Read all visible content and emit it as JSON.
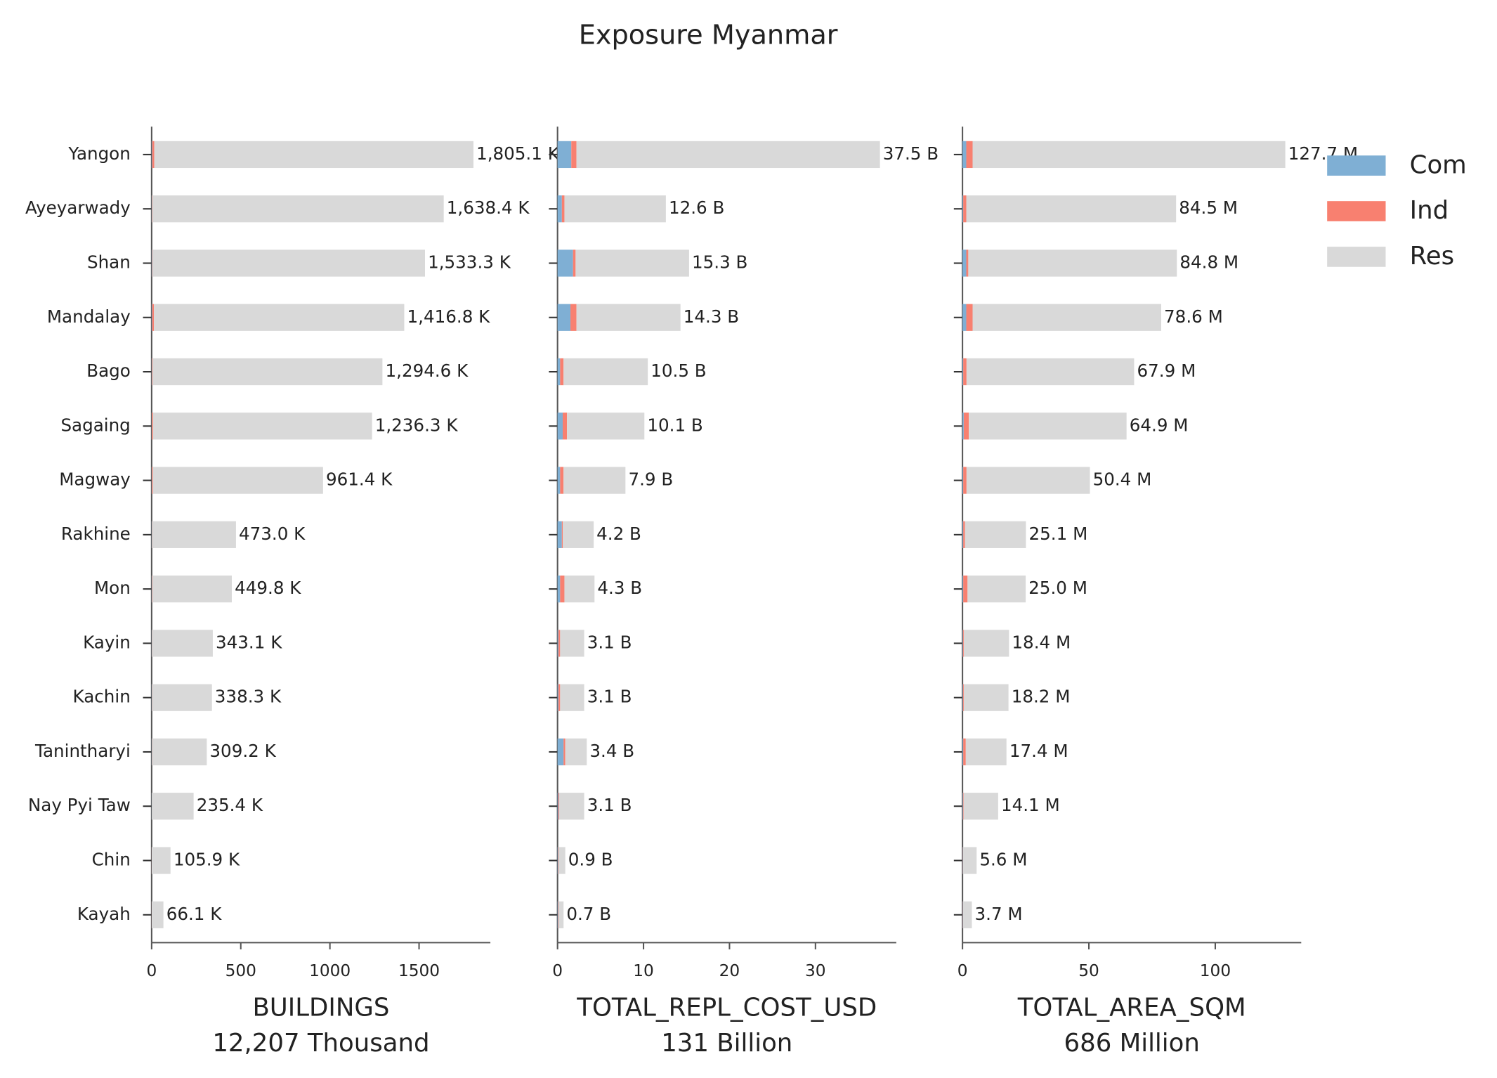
{
  "chart_data": {
    "type": "bar",
    "orientation": "horizontal",
    "title": "Exposure Myanmar",
    "categories": [
      "Yangon",
      "Ayeyarwady",
      "Shan",
      "Mandalay",
      "Bago",
      "Sagaing",
      "Magway",
      "Rakhine",
      "Mon",
      "Kayin",
      "Kachin",
      "Tanintharyi",
      "Nay Pyi Taw",
      "Chin",
      "Kayah"
    ],
    "legend": [
      {
        "name": "Com",
        "color": "#7fafd4"
      },
      {
        "name": "Ind",
        "color": "#f88070"
      },
      {
        "name": "Res",
        "color": "#d9d9d9"
      }
    ],
    "legend_position": "upper right",
    "panels": [
      {
        "xlabel": "BUILDINGS",
        "total_label": "12,207 Thousand",
        "xlim": [
          0,
          1900
        ],
        "xticks": [
          0,
          500,
          1000,
          1500
        ],
        "series": [
          {
            "values": [
              3,
              1,
              2,
              3,
              1,
              1,
              1,
              1,
              1,
              0.5,
              1,
              1,
              0.5,
              0.2,
              0.2
            ]
          },
          {
            "values": [
              12,
              2,
              2,
              10,
              3,
              6,
              5,
              1,
              2,
              1,
              1,
              1,
              0.5,
              0.3,
              0.3
            ]
          },
          {
            "values": [
              1790.1,
              1635.4,
              1529.3,
              1403.8,
              1290.6,
              1229.3,
              955.4,
              471.0,
              446.8,
              341.6,
              336.3,
              307.2,
              234.4,
              105.4,
              65.6
            ]
          }
        ],
        "value_labels": [
          "1,805.1 K",
          "1,638.4 K",
          "1,533.3 K",
          "1,416.8 K",
          "1,294.6 K",
          "1,236.3 K",
          "961.4 K",
          "473.0 K",
          "449.8 K",
          "343.1 K",
          "338.3 K",
          "309.2 K",
          "235.4 K",
          "105.9 K",
          "66.1 K"
        ]
      },
      {
        "xlabel": "TOTAL_REPL_COST_USD",
        "total_label": "131 Billion",
        "xlim": [
          0,
          39.4
        ],
        "xticks": [
          0,
          10,
          20,
          30
        ],
        "series": [
          {
            "values": [
              1.6,
              0.5,
              1.8,
              1.5,
              0.3,
              0.6,
              0.3,
              0.5,
              0.3,
              0.1,
              0.1,
              0.7,
              0.1,
              0.05,
              0.05
            ]
          },
          {
            "values": [
              0.6,
              0.3,
              0.3,
              0.7,
              0.4,
              0.5,
              0.4,
              0.1,
              0.5,
              0.2,
              0.2,
              0.2,
              0.1,
              0.05,
              0.05
            ]
          },
          {
            "values": [
              35.3,
              11.8,
              13.2,
              12.1,
              9.8,
              9.0,
              7.2,
              3.6,
              3.5,
              2.8,
              2.8,
              2.5,
              2.9,
              0.8,
              0.6
            ]
          }
        ],
        "value_labels": [
          "37.5 B",
          "12.6 B",
          "15.3 B",
          "14.3 B",
          "10.5 B",
          "10.1 B",
          "7.9 B",
          "4.2 B",
          "4.3 B",
          "3.1 B",
          "3.1 B",
          "3.4 B",
          "3.1 B",
          "0.9 B",
          "0.7 B"
        ]
      },
      {
        "xlabel": "TOTAL_AREA_SQM",
        "total_label": "686 Million",
        "xlim": [
          0,
          134
        ],
        "xticks": [
          0,
          50,
          100
        ],
        "series": [
          {
            "values": [
              1.5,
              0.3,
              1.5,
              1.5,
              0.3,
              0.5,
              0.3,
              0.3,
              0.3,
              0.2,
              0.2,
              0.3,
              0.2,
              0.1,
              0.1
            ]
          },
          {
            "values": [
              2.5,
              1.2,
              0.8,
              2.5,
              1.3,
              2.0,
              1.3,
              0.7,
              1.7,
              0.3,
              0.3,
              1.0,
              0.2,
              0.1,
              0.1
            ]
          },
          {
            "values": [
              123.7,
              83.0,
              82.5,
              74.6,
              66.3,
              62.4,
              48.8,
              24.1,
              23.0,
              17.9,
              17.7,
              16.1,
              13.7,
              5.4,
              3.5
            ]
          }
        ],
        "value_labels": [
          "127.7 M",
          "84.5 M",
          "84.8 M",
          "78.6 M",
          "67.9 M",
          "64.9 M",
          "50.4 M",
          "25.1 M",
          "25.0 M",
          "18.4 M",
          "18.2 M",
          "17.4 M",
          "14.1 M",
          "5.6 M",
          "3.7 M"
        ]
      }
    ]
  }
}
